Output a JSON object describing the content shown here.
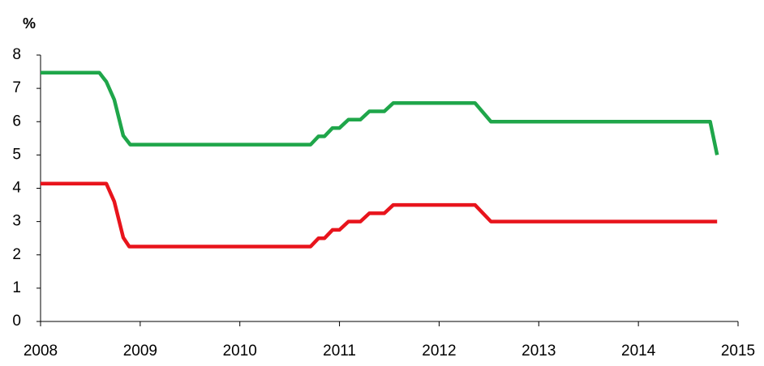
{
  "chart_data": {
    "type": "line",
    "y_label": "%",
    "xlim": [
      2008,
      2015
    ],
    "xticks": [
      2008,
      2009,
      2010,
      2011,
      2012,
      2013,
      2014,
      2015
    ],
    "ylim": [
      0,
      8
    ],
    "yticks": [
      0,
      1,
      2,
      3,
      4,
      5,
      6,
      7,
      8
    ],
    "series": [
      {
        "color": "#1fa64a",
        "x": [
          2008.0,
          2008.59,
          2008.66,
          2008.74,
          2008.83,
          2008.9,
          2010.71,
          2010.79,
          2010.85,
          2010.93,
          2011.0,
          2011.09,
          2011.21,
          2011.3,
          2011.45,
          2011.54,
          2012.36,
          2012.52,
          2014.72,
          2014.79
        ],
        "values": [
          7.47,
          7.47,
          7.2,
          6.66,
          5.58,
          5.31,
          5.31,
          5.56,
          5.56,
          5.81,
          5.81,
          6.06,
          6.06,
          6.31,
          6.31,
          6.56,
          6.56,
          6.0,
          6.0,
          5.0
        ]
      },
      {
        "color": "#e8141c",
        "x": [
          2008.0,
          2008.66,
          2008.74,
          2008.83,
          2008.89,
          2010.71,
          2010.79,
          2010.85,
          2010.93,
          2011.0,
          2011.09,
          2011.21,
          2011.3,
          2011.45,
          2011.54,
          2012.36,
          2012.52,
          2014.79
        ],
        "values": [
          4.14,
          4.14,
          3.6,
          2.52,
          2.25,
          2.25,
          2.5,
          2.5,
          2.75,
          2.75,
          3.0,
          3.0,
          3.25,
          3.25,
          3.5,
          3.5,
          3.0,
          3.0
        ]
      }
    ]
  }
}
